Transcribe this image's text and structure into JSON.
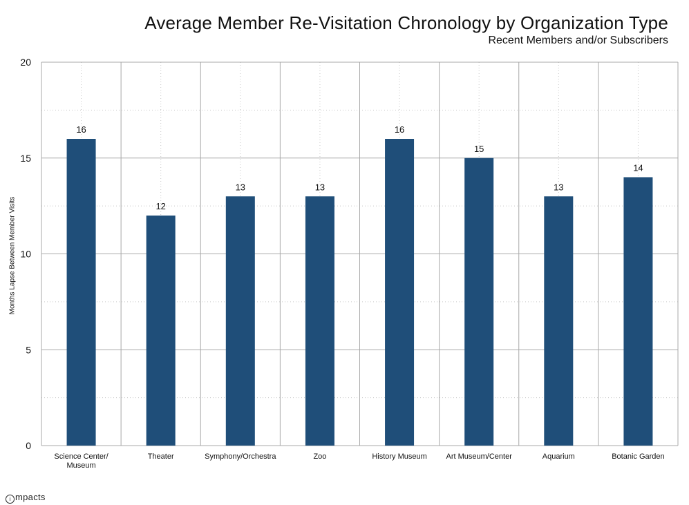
{
  "chart_data": {
    "type": "bar",
    "title": "Average Member Re-Visitation Chronology by Organization Type",
    "subtitle": "Recent Members and/or Subscribers",
    "ylabel": "Months Lapse Between Member Visits",
    "xlabel": "",
    "ylim": [
      0,
      20
    ],
    "yticks": [
      0,
      5,
      10,
      15,
      20
    ],
    "categories": [
      "Science Center/ Museum",
      "Theater",
      "Symphony/Orchestra",
      "Zoo",
      "History Museum",
      "Art Museum/Center",
      "Aquarium",
      "Botanic Garden"
    ],
    "category_lines": [
      [
        "Science Center/",
        "Museum"
      ],
      [
        "Theater"
      ],
      [
        "Symphony/Orchestra"
      ],
      [
        "Zoo"
      ],
      [
        "History Museum"
      ],
      [
        "Art Museum/Center"
      ],
      [
        "Aquarium"
      ],
      [
        "Botanic Garden"
      ]
    ],
    "values": [
      16,
      12,
      13,
      13,
      16,
      15,
      13,
      14
    ],
    "data_labels": true,
    "grid": true,
    "bar_color": "#1f4e79"
  },
  "footer": {
    "logo_text": "mpacts",
    "logo_mark": "i"
  }
}
